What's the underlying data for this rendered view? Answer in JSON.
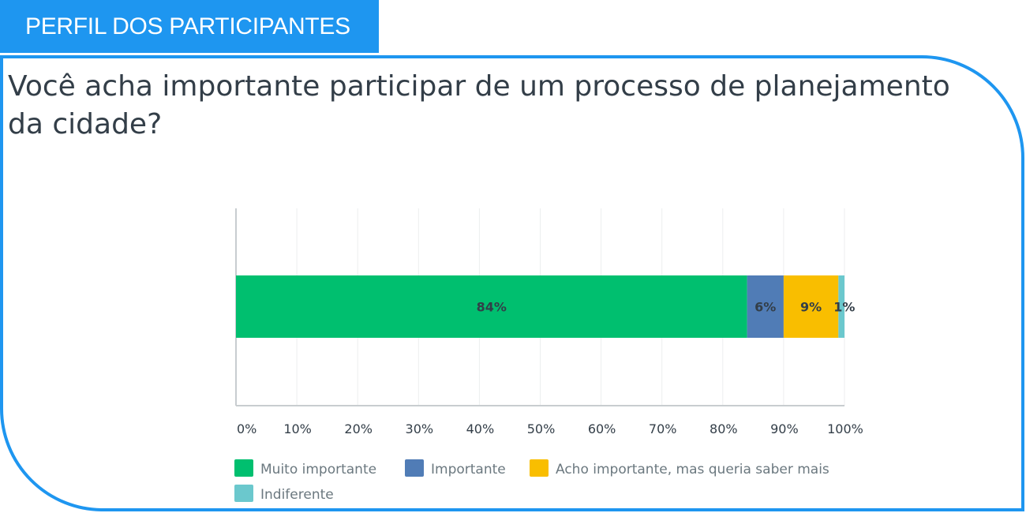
{
  "header": {
    "label": "PERFIL DOS PARTICIPANTES"
  },
  "chart_data": {
    "type": "bar",
    "orientation": "horizontal",
    "stacked": true,
    "title": "Você acha importante participar de um processo de planejamento da cidade?",
    "xlim": [
      0,
      100
    ],
    "ticks": [
      {
        "value": 0,
        "label": "0%"
      },
      {
        "value": 10,
        "label": "10%"
      },
      {
        "value": 20,
        "label": "20%"
      },
      {
        "value": 30,
        "label": "30%"
      },
      {
        "value": 40,
        "label": "40%"
      },
      {
        "value": 50,
        "label": "50%"
      },
      {
        "value": 60,
        "label": "60%"
      },
      {
        "value": 70,
        "label": "70%"
      },
      {
        "value": 80,
        "label": "80%"
      },
      {
        "value": 90,
        "label": "90%"
      },
      {
        "value": 100,
        "label": "100%"
      }
    ],
    "grid": true,
    "legend_position": "bottom-left",
    "series": [
      {
        "name": "Muito importante",
        "value": 84,
        "label": "84%",
        "color": "#00bf6f"
      },
      {
        "name": "Importante",
        "value": 6,
        "label": "6%",
        "color": "#507cb6"
      },
      {
        "name": "Acho importante, mas queria saber mais",
        "value": 9,
        "label": "9%",
        "color": "#f9be00"
      },
      {
        "name": "Indiferente",
        "value": 1,
        "label": "1%",
        "color": "#6bc8cd"
      }
    ]
  }
}
